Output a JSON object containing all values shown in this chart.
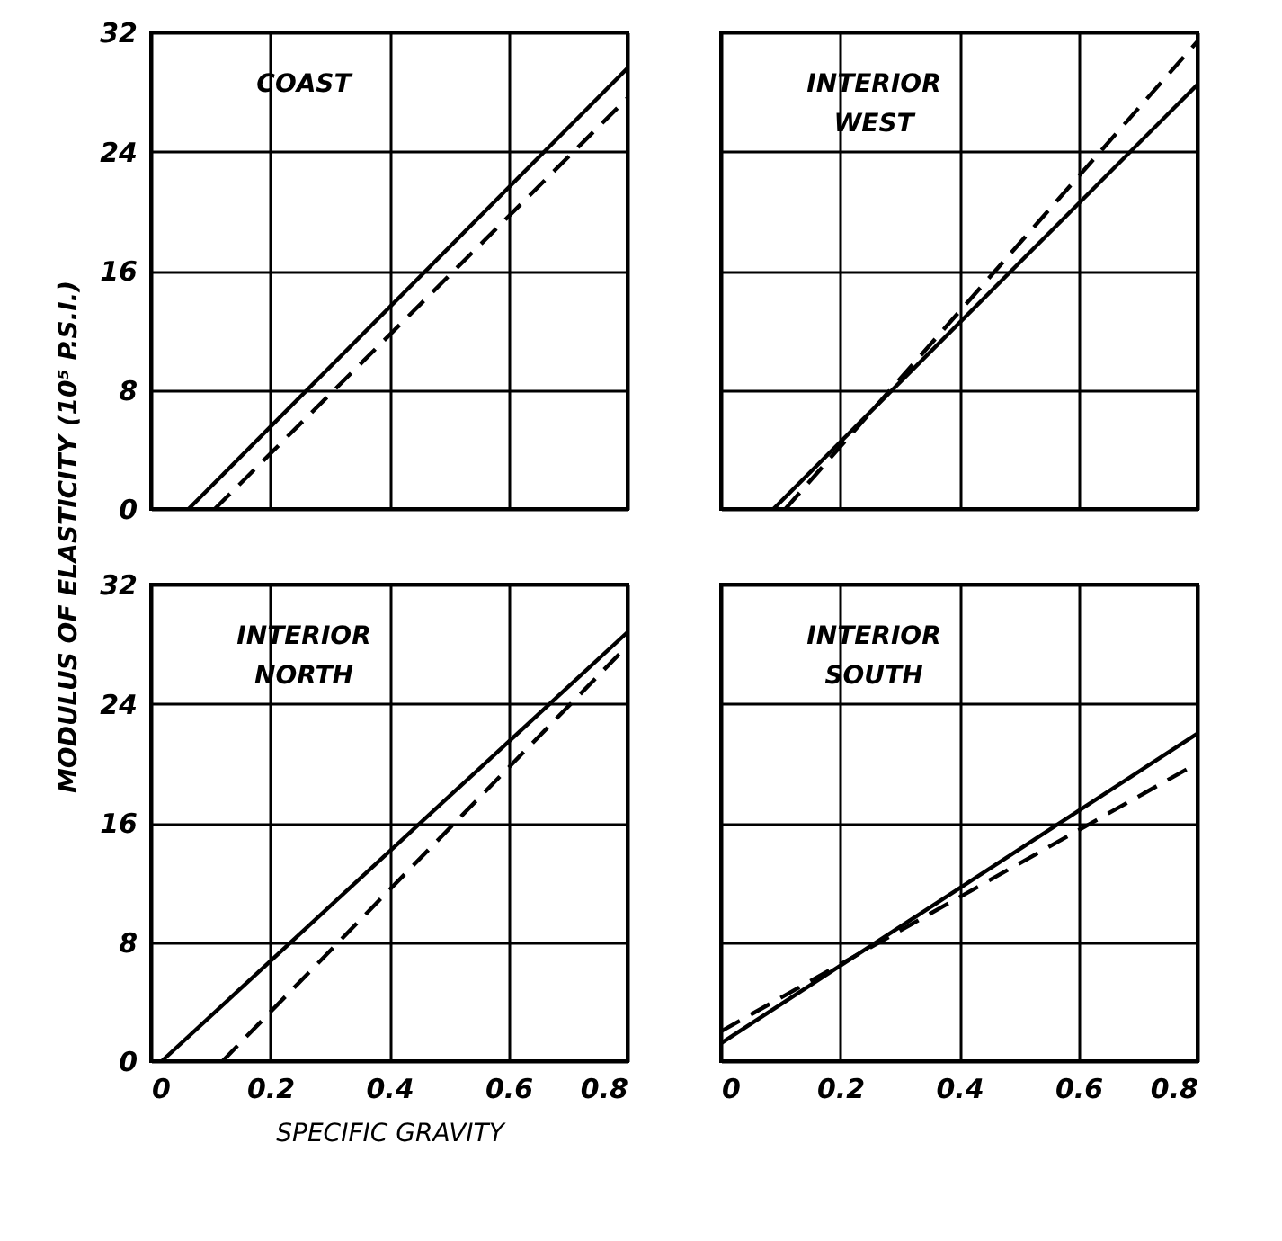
{
  "chart_data": [
    {
      "type": "line",
      "annotations": [
        "COAST"
      ],
      "ylabel": "MODULUS OF ELASTICITY (10⁵ P.S.I.)",
      "xlim": [
        0,
        0.8
      ],
      "ylim": [
        0,
        32
      ],
      "xticks": [
        0,
        0.2,
        0.4,
        0.6,
        0.8
      ],
      "yticks": [
        0,
        8,
        16,
        24,
        32
      ],
      "grid": true,
      "tick_labels": "y",
      "series": [
        {
          "color": "#000000",
          "line_style": "solid",
          "x": [
            0.063,
            0.8
          ],
          "values": [
            0,
            29.6
          ]
        },
        {
          "color": "#000000",
          "line_style": "dashed",
          "x": [
            0.107,
            0.8
          ],
          "values": [
            0,
            27.6
          ]
        }
      ]
    },
    {
      "type": "line",
      "annotations": [
        "INTERIOR WEST"
      ],
      "xlim": [
        0,
        0.8
      ],
      "ylim": [
        0,
        32
      ],
      "xticks": [
        0,
        0.2,
        0.4,
        0.6,
        0.8
      ],
      "yticks": [
        0,
        8,
        16,
        24,
        32
      ],
      "grid": true,
      "tick_labels": false,
      "series": [
        {
          "color": "#000000",
          "line_style": "solid",
          "x": [
            0.088,
            0.8
          ],
          "values": [
            0,
            28.5
          ]
        },
        {
          "color": "#000000",
          "line_style": "dashed",
          "x": [
            0.108,
            0.8
          ],
          "values": [
            0,
            31.4
          ]
        }
      ]
    },
    {
      "type": "line",
      "annotations": [
        "INTERIOR NORTH"
      ],
      "xlabel": "SPECIFIC GRAVITY",
      "xlim": [
        0,
        0.8
      ],
      "ylim": [
        0,
        32
      ],
      "xticks": [
        0,
        0.2,
        0.4,
        0.6,
        0.8
      ],
      "yticks": [
        0,
        8,
        16,
        24,
        32
      ],
      "grid": true,
      "series": [
        {
          "color": "#000000",
          "line_style": "solid",
          "x": [
            0.018,
            0.8
          ],
          "values": [
            0,
            28.8
          ]
        },
        {
          "color": "#000000",
          "line_style": "dashed",
          "x": [
            0.12,
            0.8
          ],
          "values": [
            0,
            27.9
          ]
        }
      ]
    },
    {
      "type": "line",
      "annotations": [
        "INTERIOR SOUTH"
      ],
      "xlim": [
        0,
        0.8
      ],
      "ylim": [
        0,
        32
      ],
      "xticks": [
        0,
        0.2,
        0.4,
        0.6,
        0.8
      ],
      "yticks": [
        0,
        8,
        16,
        24,
        32
      ],
      "grid": true,
      "tick_labels": "x",
      "series": [
        {
          "color": "#000000",
          "line_style": "solid",
          "x": [
            0,
            0.8
          ],
          "values": [
            1.2,
            22
          ]
        },
        {
          "color": "#000000",
          "line_style": "dashed",
          "x": [
            0,
            0.8
          ],
          "values": [
            2,
            20
          ]
        }
      ]
    }
  ]
}
